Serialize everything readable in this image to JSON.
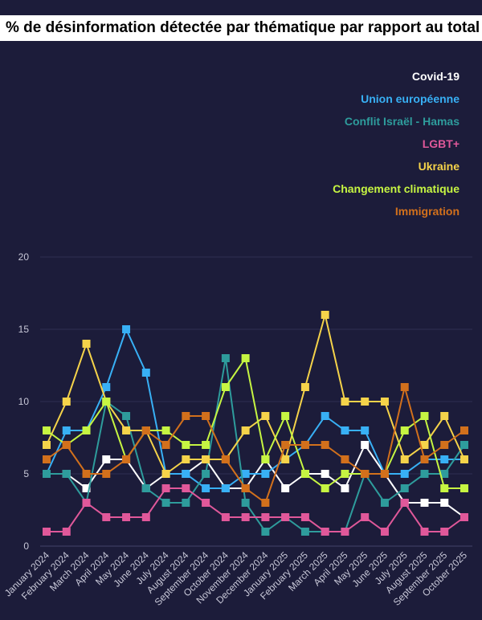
{
  "chart_data": {
    "type": "line",
    "title": "% de désinformation détectée par thématique par rapport au total",
    "xlabel": "",
    "ylabel": "",
    "ylim": [
      0,
      20
    ],
    "yticks": [
      0,
      5,
      10,
      15,
      20
    ],
    "grid": true,
    "legend_position": "top-right",
    "categories": [
      "January 2024",
      "February 2024",
      "March 2024",
      "April 2024",
      "May 2024",
      "June 2024",
      "July 2024",
      "August 2024",
      "September 2024",
      "October 2024",
      "November 2024",
      "December 2024",
      "January 2025",
      "February 2025",
      "March 2025",
      "April 2025",
      "May 2025",
      "June 2025",
      "July 2025",
      "August 2025",
      "September 2025",
      "October 2025"
    ],
    "series": [
      {
        "name": "Covid-19",
        "color": "#ffffff",
        "values": [
          5,
          5,
          4,
          6,
          6,
          4,
          5,
          5,
          6,
          4,
          4,
          6,
          4,
          5,
          5,
          4,
          7,
          5,
          3,
          3,
          3,
          2
        ]
      },
      {
        "name": "Union européenne",
        "color": "#38b0f5",
        "values": [
          5,
          8,
          8,
          11,
          15,
          12,
          5,
          5,
          4,
          4,
          5,
          5,
          6,
          7,
          9,
          8,
          8,
          5,
          5,
          6,
          6,
          6
        ]
      },
      {
        "name": "Conflit Israël - Hamas",
        "color": "#2e9c9c",
        "values": [
          5,
          5,
          3,
          10,
          9,
          4,
          3,
          3,
          5,
          13,
          3,
          1,
          2,
          1,
          1,
          1,
          5,
          3,
          4,
          5,
          5,
          7
        ]
      },
      {
        "name": "LGBT+",
        "color": "#e0589a",
        "values": [
          1,
          1,
          3,
          2,
          2,
          2,
          4,
          4,
          3,
          2,
          2,
          2,
          2,
          2,
          1,
          1,
          2,
          1,
          3,
          1,
          1,
          2
        ]
      },
      {
        "name": "Ukraine",
        "color": "#f5d34a",
        "values": [
          7,
          10,
          14,
          10,
          8,
          8,
          5,
          6,
          6,
          6,
          8,
          9,
          6,
          11,
          16,
          10,
          10,
          10,
          6,
          7,
          9,
          6
        ]
      },
      {
        "name": "Changement climatique",
        "color": "#c6f542",
        "values": [
          8,
          7,
          8,
          10,
          6,
          8,
          8,
          7,
          7,
          11,
          13,
          6,
          9,
          5,
          4,
          5,
          5,
          5,
          8,
          9,
          4,
          4
        ]
      },
      {
        "name": "Immigration",
        "color": "#d2701c",
        "values": [
          6,
          7,
          5,
          5,
          6,
          8,
          7,
          9,
          9,
          6,
          4,
          3,
          7,
          7,
          7,
          6,
          5,
          5,
          11,
          6,
          7,
          8
        ]
      }
    ]
  }
}
